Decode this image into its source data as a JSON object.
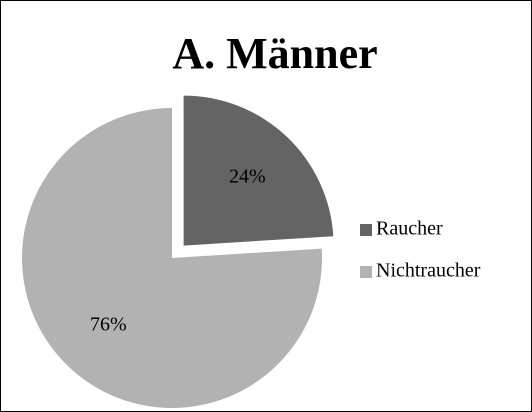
{
  "chart_data": {
    "type": "pie",
    "title": "A. Männer",
    "categories": [
      "Raucher",
      "Nichtraucher"
    ],
    "values": [
      24,
      76
    ],
    "value_labels": [
      "24%",
      "76%"
    ],
    "colors": [
      "#646464",
      "#b2b2b2"
    ],
    "legend": "right"
  }
}
